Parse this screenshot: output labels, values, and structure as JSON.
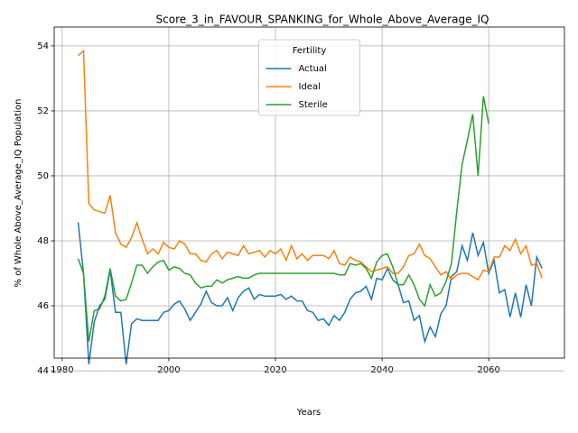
{
  "chart_data": {
    "type": "line",
    "title": "Score_3_in_FAVOUR_SPANKING_for_Whole_Above_Average_IQ",
    "xlabel": "Years",
    "ylabel": "% of Whole Above_Average_IQ Population",
    "legend_title": "Fertility",
    "legend": "upper center",
    "grid": true,
    "x": [
      1983,
      1984,
      1985,
      1986,
      1987,
      1988,
      1989,
      1990,
      1991,
      1992,
      1993,
      1994,
      1995,
      1996,
      1997,
      1998,
      1999,
      2000,
      2001,
      2002,
      2003,
      2004,
      2005,
      2006,
      2007,
      2008,
      2009,
      2010,
      2011,
      2012,
      2013,
      2014,
      2015,
      2016,
      2017,
      2018,
      2019,
      2020,
      2021,
      2022,
      2023,
      2024,
      2025,
      2026,
      2027,
      2028,
      2029,
      2030,
      2031,
      2032,
      2033,
      2034,
      2035,
      2036,
      2037,
      2038,
      2039,
      2040,
      2041,
      2042,
      2043,
      2044,
      2045,
      2046,
      2047,
      2048,
      2049,
      2050,
      2051,
      2052,
      2053,
      2054,
      2055,
      2056,
      2057,
      2058,
      2059,
      2060,
      2061,
      2062,
      2063,
      2064,
      2065,
      2066,
      2067,
      2068,
      2069,
      2070
    ],
    "xlim": [
      1978.5,
      2074.2
    ],
    "xticks": [
      1980,
      2000,
      2020,
      2040,
      2060
    ],
    "ylim": [
      44.39,
      54.58
    ],
    "yticks": [
      44,
      46,
      48,
      50,
      52,
      54
    ],
    "series": [
      {
        "name": "Actual",
        "color": "#1f77b4",
        "values": [
          48.57,
          47.0,
          44.2,
          45.5,
          46.0,
          46.2,
          47.1,
          45.8,
          45.8,
          44.2,
          45.45,
          45.6,
          45.55,
          45.55,
          45.55,
          45.55,
          45.8,
          45.85,
          46.05,
          46.15,
          45.9,
          45.55,
          45.8,
          46.05,
          46.45,
          46.1,
          46.0,
          46.0,
          46.25,
          45.85,
          46.25,
          46.45,
          46.55,
          46.2,
          46.35,
          46.3,
          46.3,
          46.3,
          46.35,
          46.2,
          46.3,
          46.15,
          46.15,
          45.85,
          45.8,
          45.55,
          45.6,
          45.4,
          45.7,
          45.55,
          45.8,
          46.2,
          46.4,
          46.45,
          46.6,
          46.2,
          46.85,
          46.8,
          47.15,
          46.8,
          46.65,
          46.1,
          46.15,
          45.55,
          45.7,
          44.9,
          45.35,
          45.05,
          45.75,
          46.0,
          46.9,
          47.05,
          47.85,
          47.4,
          48.25,
          47.55,
          47.95,
          47.0,
          47.4,
          46.4,
          46.5,
          45.65,
          46.4,
          45.65,
          46.65,
          46.0,
          47.5,
          47.15
        ]
      },
      {
        "name": "Ideal",
        "color": "#ff7f0e",
        "values": [
          53.7,
          53.85,
          49.15,
          48.95,
          48.9,
          48.85,
          49.4,
          48.25,
          47.9,
          47.8,
          48.1,
          48.55,
          48.05,
          47.6,
          47.75,
          47.6,
          47.95,
          47.8,
          47.75,
          48.0,
          47.9,
          47.6,
          47.6,
          47.4,
          47.35,
          47.6,
          47.7,
          47.45,
          47.65,
          47.6,
          47.55,
          47.85,
          47.6,
          47.65,
          47.7,
          47.5,
          47.7,
          47.6,
          47.75,
          47.4,
          47.85,
          47.45,
          47.6,
          47.4,
          47.55,
          47.55,
          47.55,
          47.45,
          47.7,
          47.3,
          47.25,
          47.5,
          47.4,
          47.35,
          47.2,
          47.05,
          47.1,
          47.15,
          47.2,
          47.0,
          47.0,
          47.2,
          47.55,
          47.6,
          47.9,
          47.55,
          47.45,
          47.2,
          46.95,
          47.05,
          46.8,
          46.95,
          47.0,
          47.0,
          46.9,
          46.8,
          47.1,
          47.05,
          47.5,
          47.5,
          47.85,
          47.7,
          48.05,
          47.6,
          47.85,
          47.25,
          47.3,
          46.85
        ]
      },
      {
        "name": "Sterile",
        "color": "#2ca02c",
        "values": [
          47.45,
          47.0,
          44.9,
          45.85,
          45.9,
          46.3,
          47.15,
          46.3,
          46.15,
          46.2,
          46.7,
          47.25,
          47.25,
          47.0,
          47.2,
          47.35,
          47.4,
          47.1,
          47.2,
          47.15,
          47.0,
          46.95,
          46.7,
          46.55,
          46.6,
          46.6,
          46.8,
          46.7,
          46.8,
          46.85,
          46.9,
          46.85,
          46.85,
          46.95,
          47.0,
          47.0,
          47.0,
          47.0,
          47.0,
          47.0,
          47.0,
          47.0,
          47.0,
          47.0,
          47.0,
          47.0,
          47.0,
          47.0,
          47.0,
          46.95,
          46.95,
          47.3,
          47.25,
          47.3,
          47.15,
          46.85,
          47.35,
          47.55,
          47.6,
          47.2,
          46.65,
          46.65,
          46.95,
          46.65,
          46.2,
          46.0,
          46.65,
          46.3,
          46.4,
          46.75,
          47.3,
          48.9,
          50.35,
          51.1,
          51.9,
          50.0,
          52.45,
          51.6,
          null,
          null,
          null,
          null,
          null,
          null,
          null,
          null,
          null,
          null
        ]
      }
    ]
  }
}
